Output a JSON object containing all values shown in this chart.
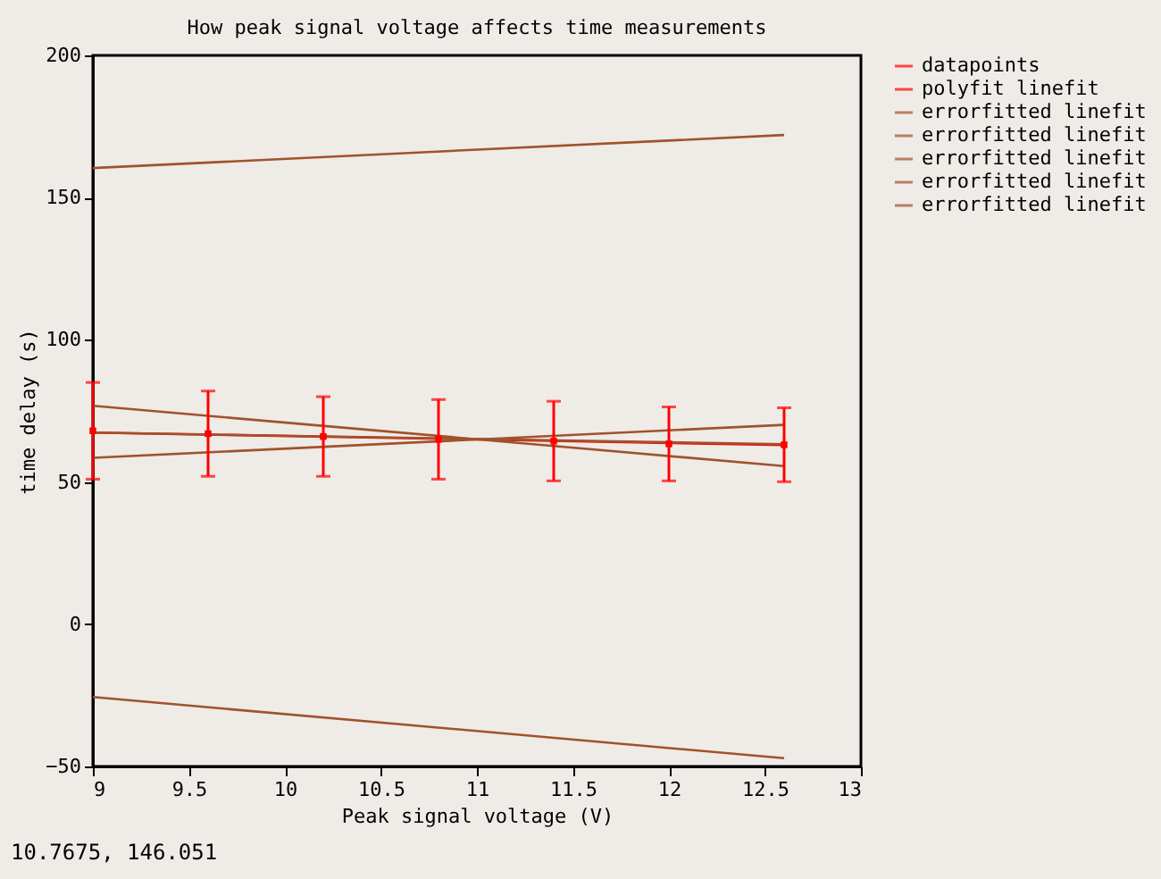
{
  "chart_data": {
    "type": "line",
    "title": "How peak signal voltage affects time measurements",
    "xlabel": "Peak signal voltage (V)",
    "ylabel": "time delay (s)",
    "xlim": [
      9,
      13
    ],
    "xticks": [
      9,
      9.5,
      10,
      10.5,
      11,
      11.5,
      12,
      12.5,
      13
    ],
    "ylim": [
      -50,
      200
    ],
    "yticks": [
      -50,
      0,
      50,
      100,
      150,
      200
    ],
    "legend": "right",
    "series": [
      {
        "name": "datapoints",
        "type": "scatter",
        "marker": "square",
        "color": "#ff0000",
        "x": [
          9,
          9.6,
          10.2,
          10.8,
          11.4,
          12,
          12.6
        ],
        "values": [
          68,
          67,
          66,
          65,
          64.4,
          63.4,
          63.1
        ],
        "errors": [
          17,
          15,
          14,
          14,
          14,
          13,
          13
        ]
      },
      {
        "name": "polyfit linefit",
        "color": "#ff0000",
        "x": [
          9,
          12.6
        ],
        "values": [
          67.4,
          63
        ]
      },
      {
        "name": "errorfitted linefit",
        "type": "line",
        "color": "#a0522d",
        "x": [
          9,
          12.6
        ],
        "values": [
          160.4,
          172
        ]
      },
      {
        "name": "errorfitted linefit",
        "type": "line",
        "color": "#a0522d",
        "x": [
          9,
          12.6
        ],
        "values": [
          76.8,
          55.6
        ]
      },
      {
        "name": "errorfitted linefit",
        "type": "line",
        "color": "#a0522d",
        "x": [
          9,
          12.6
        ],
        "values": [
          58.5,
          70.1
        ]
      },
      {
        "name": "errorfitted linefit",
        "type": "line",
        "color": "#a0522d",
        "x": [
          9,
          12.6
        ],
        "values": [
          67.4,
          63.3
        ]
      },
      {
        "name": "errorfitted linefit",
        "type": "line",
        "color": "#a0522d",
        "x": [
          9,
          12.6
        ],
        "values": [
          -25.6,
          -47.1
        ]
      }
    ],
    "annotations": [
      "10.7675,  146.051"
    ]
  }
}
